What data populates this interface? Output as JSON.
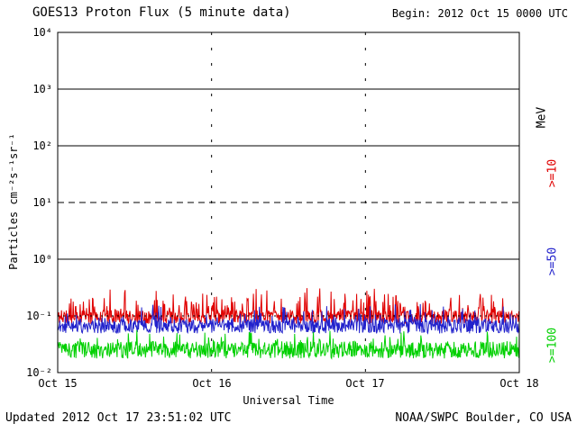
{
  "header": {
    "title": "GOES13 Proton Flux (5 minute data)",
    "begin": "Begin: 2012 Oct 15 0000 UTC"
  },
  "footer": {
    "updated": "Updated 2012 Oct 17 23:51:02 UTC",
    "credit": "NOAA/SWPC Boulder, CO USA"
  },
  "axes": {
    "ylabel": "Particles cm⁻²s⁻¹sr⁻¹",
    "xlabel": "Universal Time",
    "y_tick_labels": [
      "10⁴",
      "10³",
      "10²",
      "10¹",
      "10⁰",
      "10⁻¹",
      "10⁻²"
    ],
    "x_tick_labels": [
      "Oct 15",
      "Oct 16",
      "Oct 17",
      "Oct 18"
    ]
  },
  "right_labels": {
    "unit": "MeV",
    "t10": ">=10",
    "t50": ">=50",
    "t100": ">=100"
  },
  "colors": {
    "ge10": "#e00000",
    "ge50": "#2222cc",
    "ge100": "#00d000",
    "axis": "#000000"
  },
  "chart_data": {
    "type": "line",
    "title": "GOES13 Proton Flux (5 minute data)",
    "x_axis": {
      "label": "Universal Time",
      "start": "2012 Oct 15 0000 UTC",
      "end": "2012 Oct 18 0000 UTC",
      "tick_labels": [
        "Oct 15",
        "Oct 16",
        "Oct 17",
        "Oct 18"
      ],
      "cadence_minutes": 5
    },
    "y_axis": {
      "label": "Particles cm⁻²s⁻¹sr⁻¹",
      "scale": "log",
      "min": 0.01,
      "max": 10000,
      "decade_ticks": [
        4,
        3,
        2,
        1,
        0,
        -1,
        -2
      ]
    },
    "gridlines": [
      {
        "decade": 3,
        "style": "solid"
      },
      {
        "decade": 2,
        "style": "solid"
      },
      {
        "decade": 1,
        "style": "dashed"
      },
      {
        "decade": 0,
        "style": "solid"
      },
      {
        "decade": -1,
        "style": "dotted"
      }
    ],
    "day_boundary_lines": [
      1,
      2
    ],
    "n_points": 864,
    "series": [
      {
        "name": ">=10 MeV",
        "color": "#e00000",
        "approx_mean_flux": 0.1,
        "approx_range": [
          0.06,
          0.31
        ],
        "log10_base": -1.02,
        "log10_jitter": 0.12,
        "spike_prob": 0.22,
        "spike_amp": 0.42,
        "log10_min": -1.25,
        "seed": 11
      },
      {
        "name": ">=50 MeV",
        "color": "#2222cc",
        "approx_mean_flux": 0.065,
        "approx_range": [
          0.03,
          0.15
        ],
        "log10_base": -1.18,
        "log10_jitter": 0.13,
        "spike_prob": 0.15,
        "spike_amp": 0.3,
        "log10_min": -1.55,
        "seed": 22
      },
      {
        "name": ">=100 MeV",
        "color": "#00d000",
        "approx_mean_flux": 0.025,
        "approx_range": [
          0.01,
          0.05
        ],
        "log10_base": -1.6,
        "log10_jitter": 0.15,
        "spike_prob": 0.12,
        "spike_amp": 0.22,
        "log10_min": -2.0,
        "seed": 33
      }
    ]
  }
}
